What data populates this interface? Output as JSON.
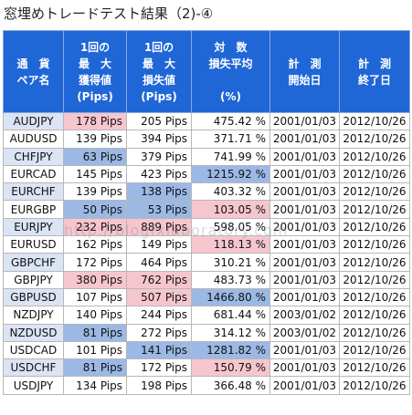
{
  "title": "窓埋めトレードテスト結果（2)-④",
  "watermark": "http://blogfxlaboratory.com",
  "colors": {
    "header_bg": "#1f66d6",
    "header_text": "#ffffff",
    "blue_highlight": "#9cb9e5",
    "red_highlight": "#f6c6cf",
    "pair_bg": "#dbe4f4",
    "plain": "#ffffff"
  },
  "headers": [
    [
      "通　貨",
      "ペア名"
    ],
    [
      "1回の",
      "最　大",
      "獲得値",
      "(Pips)"
    ],
    [
      "1回の",
      "最　大",
      "損失値",
      "(Pips)"
    ],
    [
      "対　数",
      "損失平均",
      "",
      "(%)"
    ],
    [
      "計　測",
      "開始日"
    ],
    [
      "計　測",
      "終了日"
    ]
  ],
  "rows": [
    {
      "pair": "AUDJPY",
      "gain": "178 Pips",
      "loss": "205 Pips",
      "avg": "475.42 %",
      "start": "2001/01/03",
      "end": "2012/10/26",
      "pair_hl": true,
      "gain_hl": "red",
      "loss_hl": "",
      "avg_hl": ""
    },
    {
      "pair": "AUDUSD",
      "gain": "139 Pips",
      "loss": "394 Pips",
      "avg": "371.71 %",
      "start": "2001/01/03",
      "end": "2012/10/26",
      "pair_hl": false,
      "gain_hl": "",
      "loss_hl": "",
      "avg_hl": ""
    },
    {
      "pair": "CHFJPY",
      "gain": "63 Pips",
      "loss": "379 Pips",
      "avg": "741.99 %",
      "start": "2001/01/03",
      "end": "2012/10/26",
      "pair_hl": true,
      "gain_hl": "blue",
      "loss_hl": "",
      "avg_hl": ""
    },
    {
      "pair": "EURCAD",
      "gain": "145 Pips",
      "loss": "423 Pips",
      "avg": "1215.92 %",
      "start": "2001/01/03",
      "end": "2012/10/26",
      "pair_hl": false,
      "gain_hl": "",
      "loss_hl": "",
      "avg_hl": "blue"
    },
    {
      "pair": "EURCHF",
      "gain": "139 Pips",
      "loss": "138 Pips",
      "avg": "403.32 %",
      "start": "2001/01/03",
      "end": "2012/10/26",
      "pair_hl": true,
      "gain_hl": "",
      "loss_hl": "blue",
      "avg_hl": ""
    },
    {
      "pair": "EURGBP",
      "gain": "50 Pips",
      "loss": "53 Pips",
      "avg": "103.05 %",
      "start": "2001/01/03",
      "end": "2012/10/26",
      "pair_hl": false,
      "gain_hl": "blue",
      "loss_hl": "blue",
      "avg_hl": "red"
    },
    {
      "pair": "EURJPY",
      "gain": "232 Pips",
      "loss": "889 Pips",
      "avg": "598.05 %",
      "start": "2001/01/03",
      "end": "2012/10/26",
      "pair_hl": true,
      "gain_hl": "red",
      "loss_hl": "red",
      "avg_hl": ""
    },
    {
      "pair": "EURUSD",
      "gain": "162 Pips",
      "loss": "149 Pips",
      "avg": "118.13 %",
      "start": "2001/01/03",
      "end": "2012/10/26",
      "pair_hl": false,
      "gain_hl": "",
      "loss_hl": "",
      "avg_hl": "red"
    },
    {
      "pair": "GBPCHF",
      "gain": "172 Pips",
      "loss": "464 Pips",
      "avg": "310.21 %",
      "start": "2001/01/03",
      "end": "2012/10/26",
      "pair_hl": true,
      "gain_hl": "",
      "loss_hl": "",
      "avg_hl": ""
    },
    {
      "pair": "GBPJPY",
      "gain": "380 Pips",
      "loss": "762 Pips",
      "avg": "483.73 %",
      "start": "2001/01/03",
      "end": "2012/10/26",
      "pair_hl": false,
      "gain_hl": "red",
      "loss_hl": "red",
      "avg_hl": ""
    },
    {
      "pair": "GBPUSD",
      "gain": "107 Pips",
      "loss": "507 Pips",
      "avg": "1466.80 %",
      "start": "2001/01/03",
      "end": "2012/10/26",
      "pair_hl": true,
      "gain_hl": "",
      "loss_hl": "red",
      "avg_hl": "blue"
    },
    {
      "pair": "NZDJPY",
      "gain": "140 Pips",
      "loss": "244 Pips",
      "avg": "681.44 %",
      "start": "2003/01/02",
      "end": "2012/10/26",
      "pair_hl": false,
      "gain_hl": "",
      "loss_hl": "",
      "avg_hl": ""
    },
    {
      "pair": "NZDUSD",
      "gain": "81 Pips",
      "loss": "272 Pips",
      "avg": "314.12 %",
      "start": "2003/01/02",
      "end": "2012/10/26",
      "pair_hl": true,
      "gain_hl": "blue",
      "loss_hl": "",
      "avg_hl": ""
    },
    {
      "pair": "USDCAD",
      "gain": "101 Pips",
      "loss": "141 Pips",
      "avg": "1281.82 %",
      "start": "2001/01/03",
      "end": "2012/10/26",
      "pair_hl": false,
      "gain_hl": "",
      "loss_hl": "blue",
      "avg_hl": "blue"
    },
    {
      "pair": "USDCHF",
      "gain": "81 Pips",
      "loss": "172 Pips",
      "avg": "150.79 %",
      "start": "2001/01/03",
      "end": "2012/10/26",
      "pair_hl": true,
      "gain_hl": "blue",
      "loss_hl": "",
      "avg_hl": "red"
    },
    {
      "pair": "USDJPY",
      "gain": "134 Pips",
      "loss": "198 Pips",
      "avg": "366.48 %",
      "start": "2001/01/03",
      "end": "2012/10/26",
      "pair_hl": false,
      "gain_hl": "",
      "loss_hl": "",
      "avg_hl": ""
    }
  ]
}
